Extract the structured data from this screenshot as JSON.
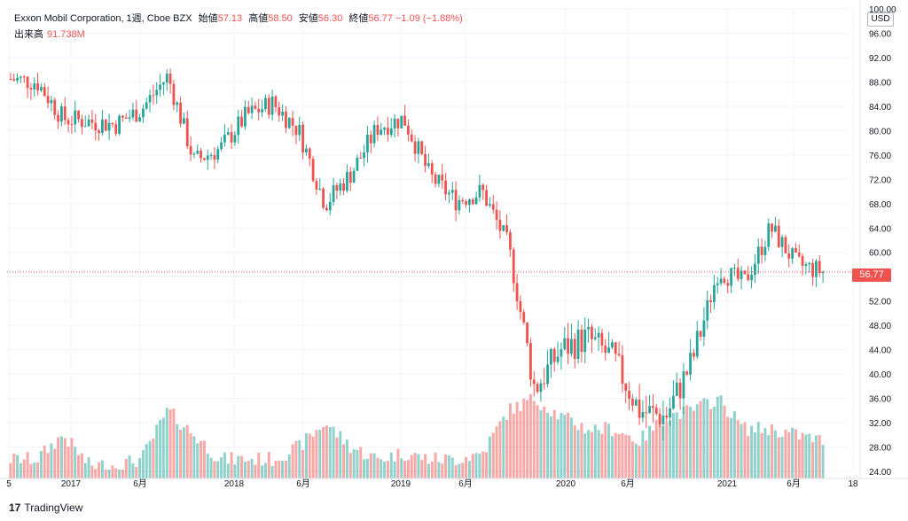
{
  "header": {
    "symbol": "Exxon Mobil Corporation, 1週, Cboe BZX",
    "open_label": "始値",
    "open": "57.13",
    "high_label": "高値",
    "high": "58.50",
    "low_label": "安値",
    "low": "56.30",
    "close_label": "終値",
    "close": "56.77",
    "change": "−1.09 (−1.88%)",
    "volume_label": "出来高",
    "volume": "91.738M"
  },
  "currency": "USD",
  "last_price_label": "56.77",
  "brand": {
    "logo": "17",
    "name": "TradingView"
  },
  "colors": {
    "up": "#26a69a",
    "down": "#ef5350",
    "grid": "#f0f3fa",
    "dotted": "#ef5350"
  },
  "chart_data": {
    "type": "candlestick",
    "title": "Exxon Mobil Corporation, 1週, Cboe BZX",
    "y_ticks": [
      "24.00",
      "28.00",
      "32.00",
      "36.00",
      "40.00",
      "44.00",
      "48.00",
      "52.00",
      "56.00",
      "60.00",
      "64.00",
      "68.00",
      "72.00",
      "76.00",
      "80.00",
      "84.00",
      "88.00",
      "92.00",
      "96.00",
      "100.00"
    ],
    "ylim": [
      24,
      100
    ],
    "x_ticks": [
      "5",
      "2017",
      "6月",
      "2018",
      "6月",
      "2019",
      "6月",
      "2020",
      "6月",
      "2021",
      "6月",
      "18"
    ],
    "last_price": 56.77,
    "series": [
      {
        "name": "close",
        "x": [
          "2016-12",
          "2017-01",
          "2017-03",
          "2017-06",
          "2017-09",
          "2017-12",
          "2018-01",
          "2018-02",
          "2018-04",
          "2018-06",
          "2018-09",
          "2018-10",
          "2018-12",
          "2019-01",
          "2019-04",
          "2019-05",
          "2019-08",
          "2019-11",
          "2020-01",
          "2020-02",
          "2020-03",
          "2020-04",
          "2020-06",
          "2020-08",
          "2020-10",
          "2020-11",
          "2021-01",
          "2021-03",
          "2021-04",
          "2021-06",
          "2021-07",
          "2021-08"
        ],
        "values": [
          88.5,
          88.0,
          82.0,
          81.5,
          81.0,
          83.5,
          89.0,
          75.0,
          77.0,
          82.5,
          84.5,
          80.0,
          68.0,
          73.0,
          80.5,
          82.0,
          72.5,
          68.5,
          70.0,
          61.0,
          37.5,
          44.0,
          46.0,
          42.5,
          34.0,
          33.0,
          42.0,
          57.0,
          55.0,
          64.0,
          58.0,
          56.77
        ]
      }
    ],
    "volume": [
      {
        "name": "volume",
        "values": [
          26,
          26,
          30,
          25,
          25,
          26,
          34,
          30,
          26,
          26,
          26,
          28,
          32,
          28,
          26,
          27,
          26,
          26,
          27,
          34,
          36,
          33,
          31,
          31,
          29,
          33,
          34,
          36,
          31,
          31,
          30,
          29
        ]
      }
    ]
  }
}
